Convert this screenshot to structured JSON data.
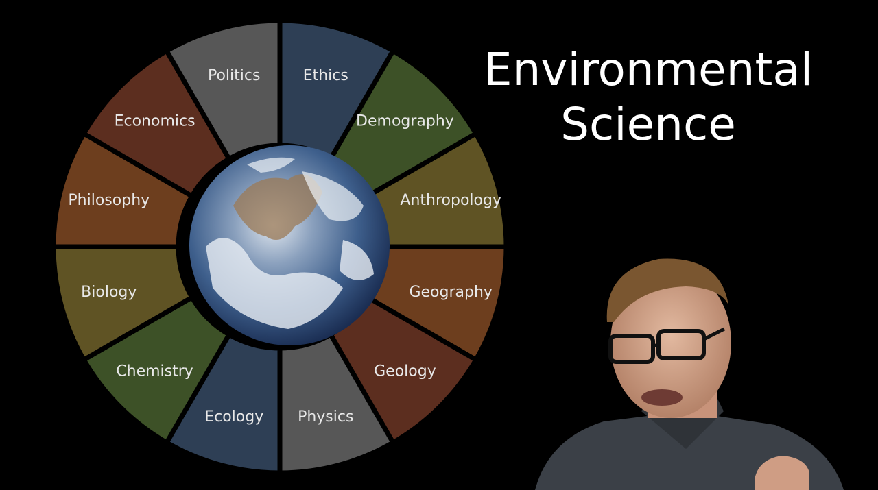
{
  "title": {
    "line1": "Environmental",
    "line2": "Science"
  },
  "center": {
    "icon": "earth-globe"
  },
  "segments": [
    {
      "label": "Ethics",
      "color": "#2e3f55"
    },
    {
      "label": "Demography",
      "color": "#3d5127"
    },
    {
      "label": "Anthropology",
      "color": "#5f5324"
    },
    {
      "label": "Geography",
      "color": "#6d3e1e"
    },
    {
      "label": "Geology",
      "color": "#5c2e1f"
    },
    {
      "label": "Physics",
      "color": "#575757"
    },
    {
      "label": "Ecology",
      "color": "#2e3f55"
    },
    {
      "label": "Chemistry",
      "color": "#3d5127"
    },
    {
      "label": "Biology",
      "color": "#5f5324"
    },
    {
      "label": "Philosophy",
      "color": "#6d3e1e"
    },
    {
      "label": "Economics",
      "color": "#5c2e1f"
    },
    {
      "label": "Politics",
      "color": "#575757"
    }
  ]
}
